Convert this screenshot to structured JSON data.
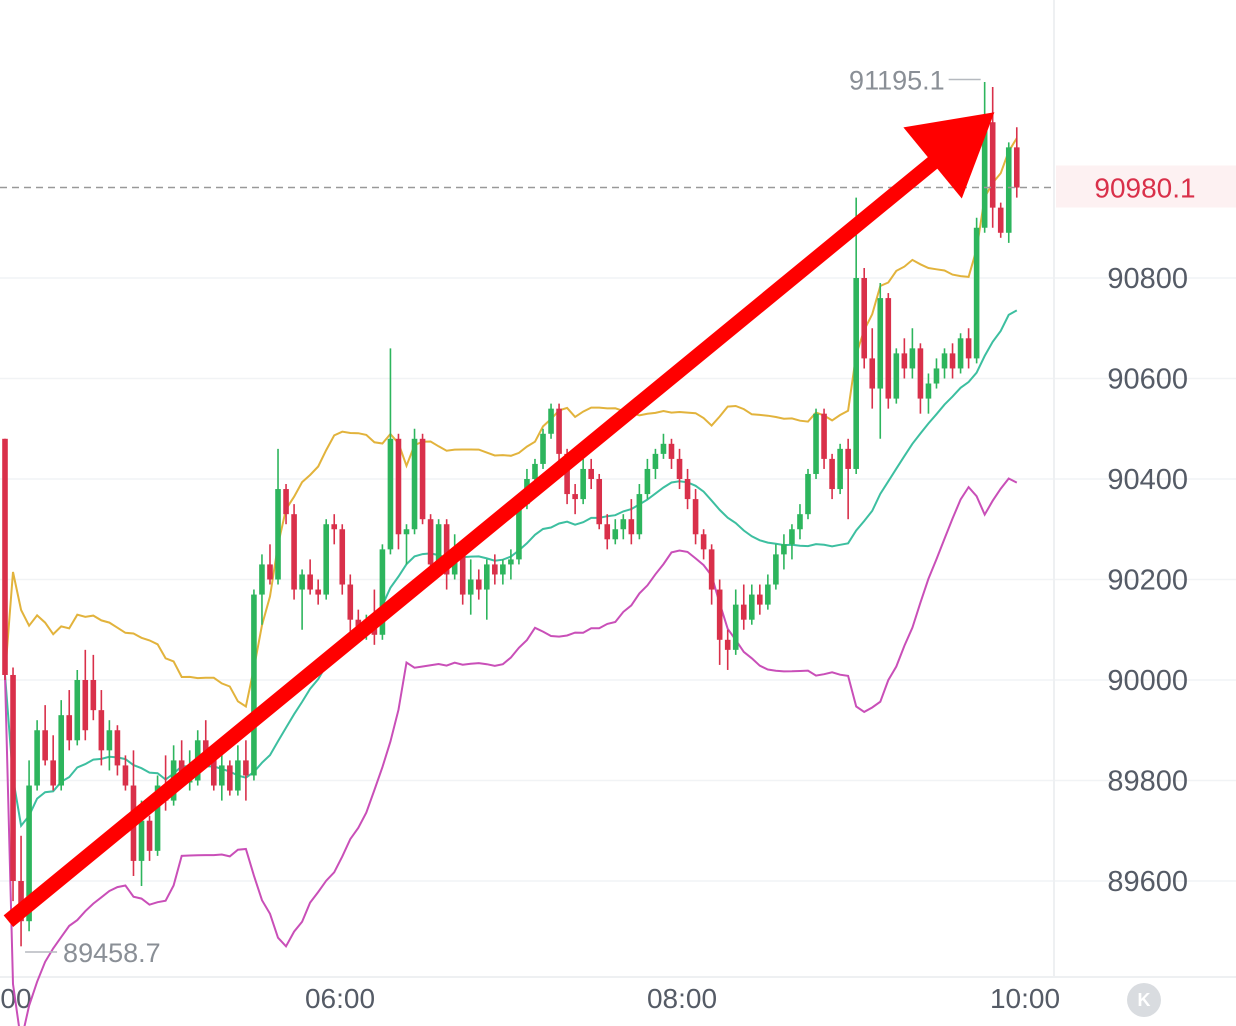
{
  "chart_data": {
    "type": "candlestick",
    "y_ticks": [
      "90800",
      "90600",
      "90400",
      "90200",
      "90000",
      "89800",
      "89600"
    ],
    "x_ticks": [
      "00",
      "06:00",
      "08:00",
      "10:00"
    ],
    "ylim": [
      89400,
      91300
    ],
    "current_price": "90980.1",
    "high_marker": "91195.1",
    "low_marker": "89458.7",
    "trend_arrow": {
      "from": [
        "04:05",
        89520
      ],
      "to": [
        "09:50",
        91130
      ]
    },
    "colors": {
      "up": "#2db55d",
      "down": "#d9304a",
      "arrow": "#ff0000",
      "upper_band": "#e2b33c",
      "middle_band": "#3dbfa0",
      "lower_band": "#c94fb8"
    },
    "candles": [
      [
        90480,
        90480,
        90000,
        90010
      ],
      [
        90010,
        90025,
        89560,
        89600
      ],
      [
        89600,
        89690,
        89470,
        89520
      ],
      [
        89520,
        89840,
        89500,
        89790
      ],
      [
        89790,
        89920,
        89780,
        89900
      ],
      [
        89900,
        89950,
        89830,
        89840
      ],
      [
        89840,
        89890,
        89780,
        89790
      ],
      [
        89790,
        89960,
        89780,
        89930
      ],
      [
        89930,
        89980,
        89860,
        89880
      ],
      [
        89880,
        90020,
        89870,
        90000
      ],
      [
        90000,
        90060,
        89880,
        89900
      ],
      [
        90000,
        90050,
        89920,
        89940
      ],
      [
        89940,
        89980,
        89830,
        89860
      ],
      [
        89860,
        89920,
        89820,
        89900
      ],
      [
        89900,
        89910,
        89810,
        89830
      ],
      [
        89830,
        89850,
        89780,
        89790
      ],
      [
        89790,
        89860,
        89610,
        89640
      ],
      [
        89640,
        89760,
        89590,
        89720
      ],
      [
        89720,
        89730,
        89640,
        89660
      ],
      [
        89660,
        89810,
        89650,
        89790
      ],
      [
        89790,
        89850,
        89740,
        89760
      ],
      [
        89760,
        89870,
        89750,
        89840
      ],
      [
        89840,
        89880,
        89790,
        89800
      ],
      [
        89800,
        89860,
        89780,
        89800
      ],
      [
        89800,
        89900,
        89790,
        89880
      ],
      [
        89880,
        89920,
        89830,
        89850
      ],
      [
        89850,
        89870,
        89780,
        89790
      ],
      [
        89790,
        89870,
        89760,
        89830
      ],
      [
        89830,
        89840,
        89770,
        89780
      ],
      [
        89780,
        89870,
        89770,
        89840
      ],
      [
        89840,
        89880,
        89760,
        89810
      ],
      [
        89810,
        90180,
        89800,
        90170
      ],
      [
        90170,
        90250,
        90110,
        90230
      ],
      [
        90230,
        90270,
        90190,
        90200
      ],
      [
        90200,
        90460,
        90190,
        90380
      ],
      [
        90380,
        90390,
        90310,
        90330
      ],
      [
        90330,
        90350,
        90160,
        90180
      ],
      [
        90180,
        90220,
        90100,
        90210
      ],
      [
        90210,
        90240,
        90170,
        90180
      ],
      [
        90180,
        90200,
        90150,
        90170
      ],
      [
        90170,
        90320,
        90160,
        90310
      ],
      [
        90310,
        90330,
        90270,
        90300
      ],
      [
        90300,
        90310,
        90170,
        90190
      ],
      [
        90190,
        90210,
        90090,
        90120
      ],
      [
        90120,
        90140,
        90080,
        90100
      ],
      [
        90100,
        90130,
        90080,
        90120
      ],
      [
        90120,
        90180,
        90070,
        90090
      ],
      [
        90090,
        90270,
        90080,
        90260
      ],
      [
        90260,
        90660,
        90250,
        90480
      ],
      [
        90480,
        90490,
        90260,
        90290
      ],
      [
        90290,
        90310,
        90230,
        90300
      ],
      [
        90300,
        90500,
        90290,
        90480
      ],
      [
        90480,
        90490,
        90310,
        90320
      ],
      [
        90320,
        90330,
        90210,
        90230
      ],
      [
        90230,
        90320,
        90220,
        90310
      ],
      [
        90310,
        90320,
        90180,
        90210
      ],
      [
        90210,
        90290,
        90200,
        90260
      ],
      [
        90260,
        90270,
        90150,
        90170
      ],
      [
        90170,
        90240,
        90130,
        90200
      ],
      [
        90200,
        90220,
        90160,
        90180
      ],
      [
        90180,
        90240,
        90120,
        90230
      ],
      [
        90230,
        90250,
        90190,
        90210
      ],
      [
        90210,
        90240,
        90190,
        90230
      ],
      [
        90230,
        90260,
        90200,
        90240
      ],
      [
        90240,
        90360,
        90230,
        90350
      ],
      [
        90350,
        90420,
        90340,
        90400
      ],
      [
        90400,
        90440,
        90380,
        90430
      ],
      [
        90430,
        90500,
        90420,
        90490
      ],
      [
        90490,
        90550,
        90480,
        90540
      ],
      [
        90540,
        90550,
        90430,
        90450
      ],
      [
        90450,
        90460,
        90350,
        90370
      ],
      [
        90370,
        90390,
        90330,
        90360
      ],
      [
        90360,
        90440,
        90350,
        90420
      ],
      [
        90420,
        90440,
        90380,
        90400
      ],
      [
        90400,
        90410,
        90300,
        90310
      ],
      [
        90310,
        90330,
        90260,
        90280
      ],
      [
        90280,
        90320,
        90270,
        90300
      ],
      [
        90300,
        90330,
        90280,
        90320
      ],
      [
        90320,
        90360,
        90270,
        90290
      ],
      [
        90290,
        90390,
        90280,
        90370
      ],
      [
        90370,
        90440,
        90360,
        90420
      ],
      [
        90420,
        90460,
        90400,
        90450
      ],
      [
        90450,
        90490,
        90440,
        90470
      ],
      [
        90470,
        90480,
        90420,
        90440
      ],
      [
        90440,
        90460,
        90380,
        90400
      ],
      [
        90400,
        90420,
        90340,
        90360
      ],
      [
        90360,
        90380,
        90270,
        90290
      ],
      [
        90290,
        90300,
        90240,
        90260
      ],
      [
        90260,
        90270,
        90150,
        90180
      ],
      [
        90180,
        90200,
        90030,
        90080
      ],
      [
        90080,
        90100,
        90020,
        90060
      ],
      [
        90060,
        90180,
        90050,
        90150
      ],
      [
        90150,
        90190,
        90100,
        90120
      ],
      [
        90120,
        90190,
        90110,
        90170
      ],
      [
        90170,
        90190,
        90130,
        90150
      ],
      [
        90150,
        90210,
        90140,
        90190
      ],
      [
        90190,
        90270,
        90180,
        90250
      ],
      [
        90250,
        90290,
        90220,
        90270
      ],
      [
        90270,
        90310,
        90240,
        90300
      ],
      [
        90300,
        90350,
        90280,
        90330
      ],
      [
        90330,
        90420,
        90320,
        90410
      ],
      [
        90410,
        90540,
        90400,
        90530
      ],
      [
        90530,
        90540,
        90420,
        90440
      ],
      [
        90440,
        90450,
        90360,
        90380
      ],
      [
        90380,
        90470,
        90370,
        90460
      ],
      [
        90460,
        90480,
        90320,
        90420
      ],
      [
        90420,
        90960,
        90410,
        90800
      ],
      [
        90800,
        90820,
        90620,
        90640
      ],
      [
        90640,
        90700,
        90540,
        90580
      ],
      [
        90580,
        90790,
        90480,
        90760
      ],
      [
        90760,
        90770,
        90540,
        90560
      ],
      [
        90560,
        90660,
        90550,
        90650
      ],
      [
        90650,
        90680,
        90600,
        90620
      ],
      [
        90620,
        90700,
        90600,
        90660
      ],
      [
        90660,
        90670,
        90530,
        90560
      ],
      [
        90560,
        90610,
        90530,
        90590
      ],
      [
        90590,
        90640,
        90580,
        90620
      ],
      [
        90620,
        90660,
        90600,
        90650
      ],
      [
        90650,
        90670,
        90600,
        90620
      ],
      [
        90620,
        90690,
        90610,
        90680
      ],
      [
        90680,
        90700,
        90620,
        90640
      ],
      [
        90640,
        90920,
        90630,
        90900
      ],
      [
        90900,
        91190,
        90890,
        91110
      ],
      [
        91110,
        91180,
        90900,
        90940
      ],
      [
        90940,
        90950,
        90880,
        90890
      ],
      [
        90890,
        91070,
        90870,
        91060
      ],
      [
        91060,
        91100,
        90960,
        90980
      ]
    ]
  }
}
